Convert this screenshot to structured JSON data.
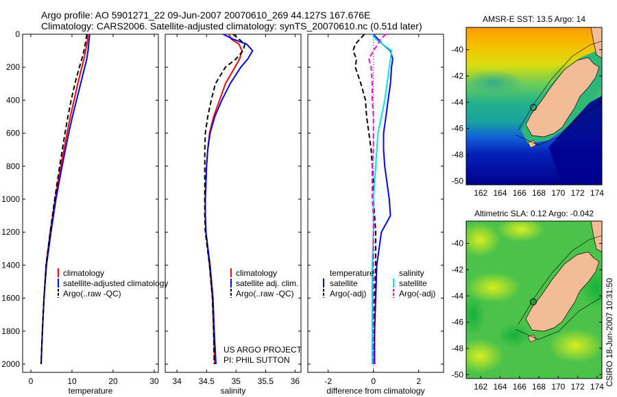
{
  "header": {
    "line1": "Argo profile: AO 5901271_22 09-Jun-2007 20070610_269 44.127S 167.676E",
    "line2": "Climatology: CARS2006. Satellite-adjusted climatology: synTS_20070610.nc (0.51d later)"
  },
  "side_label": "CSIRO 18-Jun-2007 10:31:50",
  "colors": {
    "climatology": "#ff0000",
    "satellite": "#0000ff",
    "argo": "#000000",
    "salinity_satellite": "#00e5e5",
    "salinity_argo": "#ff00ff",
    "land": "#f2bc96",
    "coast": "#000000"
  },
  "chart_data": [
    {
      "type": "line",
      "id": "temperature",
      "xlabel": "temperature",
      "ylabel": "",
      "xlim": [
        -2,
        31
      ],
      "ylim": [
        0,
        2050
      ],
      "y_reversed": true,
      "xticks": [
        "0",
        "10",
        "20",
        "30"
      ],
      "yticks": [
        "0",
        "200",
        "400",
        "600",
        "800",
        "1000",
        "1200",
        "1400",
        "1600",
        "1800",
        "2000"
      ],
      "depth": [
        0,
        50,
        100,
        150,
        200,
        300,
        400,
        500,
        600,
        800,
        1000,
        1200,
        1400,
        1600,
        1800,
        2000
      ],
      "series": [
        {
          "name": "climatology",
          "style": "solid",
          "values": [
            13.9,
            13.7,
            13.3,
            12.9,
            12.4,
            11.4,
            10.5,
            9.6,
            8.8,
            7.3,
            5.9,
            4.7,
            3.7,
            3.2,
            2.8,
            2.5
          ]
        },
        {
          "name": "satellite-adjusted climatology",
          "style": "solid",
          "values": [
            14.3,
            14.1,
            13.9,
            13.6,
            13.1,
            12.1,
            11.1,
            10.1,
            9.2,
            7.6,
            6.1,
            4.9,
            3.8,
            3.2,
            2.8,
            2.5
          ]
        },
        {
          "name": "Argo(..raw -QC)",
          "style": "dashed",
          "values": [
            13.6,
            13.3,
            12.9,
            12.4,
            11.8,
            10.7,
            9.8,
            9.0,
            8.3,
            7.0,
            5.8,
            4.7,
            3.7,
            3.2,
            2.8,
            2.5
          ]
        }
      ],
      "legend": [
        "climatology",
        "satellite-adjusted climatology",
        "Argo(..raw -QC)"
      ],
      "legend_position": "bottom-center"
    },
    {
      "type": "line",
      "id": "salinity",
      "xlabel": "salinity",
      "xlim": [
        33.8,
        36.1
      ],
      "ylim": [
        0,
        2050
      ],
      "y_reversed": true,
      "xticks": [
        "34",
        "34.5",
        "35",
        "35.5",
        "36"
      ],
      "depth": [
        0,
        30,
        60,
        100,
        150,
        200,
        300,
        400,
        500,
        600,
        700,
        800,
        900,
        1000,
        1100,
        1200,
        1400,
        1600,
        1800,
        2000
      ],
      "series": [
        {
          "name": "climatology",
          "style": "solid",
          "values": [
            34.88,
            34.92,
            35.05,
            35.1,
            35.06,
            34.98,
            34.82,
            34.72,
            34.62,
            34.55,
            34.52,
            34.5,
            34.49,
            34.48,
            34.48,
            34.49,
            34.55,
            34.6,
            34.62,
            34.64
          ]
        },
        {
          "name": "satellite adj. clim.",
          "style": "solid",
          "values": [
            34.78,
            34.95,
            35.18,
            35.28,
            35.2,
            35.08,
            34.9,
            34.76,
            34.64,
            34.56,
            34.52,
            34.5,
            34.49,
            34.48,
            34.48,
            34.49,
            34.56,
            34.61,
            34.63,
            34.66
          ]
        },
        {
          "name": "Argo(..raw -QC)",
          "style": "dashed",
          "values": [
            34.95,
            35.05,
            35.15,
            35.12,
            35.0,
            34.82,
            34.65,
            34.58,
            34.52,
            34.48,
            34.47,
            34.47,
            34.47,
            34.47,
            34.47,
            34.48,
            34.55,
            34.6,
            34.62,
            34.63
          ]
        }
      ],
      "legend": [
        "climatology",
        "satellite adj. clim.",
        "Argo(..raw -QC)"
      ],
      "legend_position": "bottom-center",
      "annotation": [
        "US ARGO PROJECT",
        "PI: PHIL SUTTON"
      ]
    },
    {
      "type": "line",
      "id": "difference",
      "xlabel": "difference from climatology",
      "xlim": [
        -2.9,
        3.1
      ],
      "ylim": [
        0,
        2050
      ],
      "y_reversed": true,
      "xticks": [
        "-2",
        "0",
        "2"
      ],
      "zero_line": true,
      "depth": [
        0,
        30,
        60,
        100,
        150,
        200,
        300,
        400,
        500,
        600,
        700,
        800,
        900,
        1000,
        1100,
        1200,
        1400,
        1600,
        1800,
        2000
      ],
      "series": [
        {
          "group": "temperature",
          "name": "satellite",
          "style": "solid",
          "values": [
            0.0,
            0.2,
            0.4,
            0.75,
            0.85,
            0.8,
            0.75,
            0.65,
            0.55,
            0.45,
            0.45,
            0.5,
            0.6,
            0.7,
            0.75,
            0.35,
            0.15,
            0.1,
            0.05,
            0.05
          ]
        },
        {
          "group": "temperature",
          "name": "Argo(-adj)",
          "style": "dashed",
          "values": [
            -0.4,
            -0.6,
            -0.8,
            -0.9,
            -0.75,
            -0.8,
            -0.55,
            -0.35,
            -0.3,
            -0.2,
            -0.1,
            -0.05,
            0.0,
            0.0,
            0.05,
            0.1,
            0.1,
            0.05,
            0.05,
            0.0
          ]
        },
        {
          "group": "salinity",
          "name": "satellite",
          "style": "solid",
          "values": [
            -0.05,
            0.1,
            0.4,
            0.8,
            0.75,
            0.7,
            0.6,
            0.5,
            0.35,
            0.2,
            0.15,
            0.1,
            0.05,
            0.0,
            0.0,
            0.0,
            -0.05,
            -0.05,
            -0.05,
            -0.05
          ]
        },
        {
          "group": "salinity",
          "name": "Argo(-adj)",
          "style": "dashed",
          "values": [
            0.55,
            0.3,
            0.2,
            0.0,
            -0.2,
            -0.1,
            -0.05,
            -0.05,
            0.0,
            0.0,
            0.0,
            -0.05,
            -0.05,
            -0.05,
            0.0,
            0.0,
            0.0,
            0.0,
            0.0,
            0.0
          ]
        }
      ],
      "legend": {
        "temperature": {
          "title": "temperature",
          "items": [
            "satellite",
            "Argo(-adj)"
          ]
        },
        "salinity": {
          "title": "salinity",
          "items": [
            "satellite",
            "Argo(-adj)"
          ]
        }
      },
      "legend_position": "bottom-center"
    },
    {
      "type": "heatmap",
      "id": "sst_map",
      "title": "AMSR-E SST: 13.5 Argo: 14",
      "xlim": [
        160.5,
        174.5
      ],
      "ylim": [
        -50.3,
        -38.3
      ],
      "xticks": [
        "162",
        "164",
        "166",
        "168",
        "170",
        "172",
        "174"
      ],
      "yticks": [
        "-40",
        "-42",
        "-44",
        "-46",
        "-48",
        "-50"
      ],
      "profile_location": {
        "lon": 167.676,
        "lat": -44.127
      }
    },
    {
      "type": "heatmap",
      "id": "sla_map",
      "title": "Altimetric SLA: 0.12 Argo: -0.042",
      "xlim": [
        160.5,
        174.5
      ],
      "ylim": [
        -50.3,
        -38.3
      ],
      "xticks": [
        "162",
        "164",
        "166",
        "168",
        "170",
        "172",
        "174"
      ],
      "yticks": [
        "-40",
        "-42",
        "-44",
        "-46",
        "-48",
        "-50"
      ],
      "profile_location": {
        "lon": 167.676,
        "lat": -44.127
      }
    }
  ]
}
